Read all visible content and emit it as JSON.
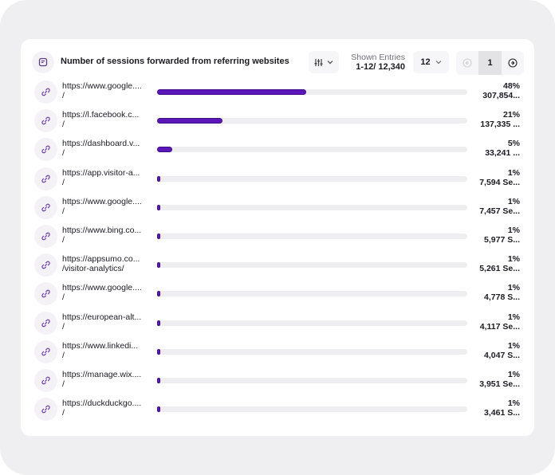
{
  "header": {
    "title": "Number of sessions forwarded from referring websites",
    "title_icon": "report-icon",
    "filter_icon": "sliders-icon",
    "entries_label": "Shown Entries",
    "entries_value": "1-12/ 12,340",
    "page_size": "12",
    "current_page": "1",
    "prev_icon": "arrow-left-circle-icon",
    "next_icon": "arrow-right-circle-icon"
  },
  "colors": {
    "bar_fill": "#5b17b8",
    "bar_track": "#eeeef0",
    "icon_bg": "#f4f2f7",
    "frame_bg": "#efeff1"
  },
  "rows": [
    {
      "url": "https://www.google....",
      "path": "/",
      "percent": "48%",
      "sessions": "307,854...",
      "fill": 48
    },
    {
      "url": "https://l.facebook.c...",
      "path": "/",
      "percent": "21%",
      "sessions": "137,335 ...",
      "fill": 21
    },
    {
      "url": "https://dashboard.v...",
      "path": "/",
      "percent": "5%",
      "sessions": "33,241 ...",
      "fill": 5
    },
    {
      "url": "https://app.visitor-a...",
      "path": "/",
      "percent": "1%",
      "sessions": "7,594 Se...",
      "fill": 1
    },
    {
      "url": "https://www.google....",
      "path": "/",
      "percent": "1%",
      "sessions": "7,457 Se...",
      "fill": 1
    },
    {
      "url": "https://www.bing.co...",
      "path": "/",
      "percent": "1%",
      "sessions": "5,977 S...",
      "fill": 1
    },
    {
      "url": "https://appsumo.co...",
      "path": "/visitor-analytics/",
      "percent": "1%",
      "sessions": "5,261 Se...",
      "fill": 1
    },
    {
      "url": "https://www.google....",
      "path": "/",
      "percent": "1%",
      "sessions": "4,778 S...",
      "fill": 1
    },
    {
      "url": "https://european-alt...",
      "path": "/",
      "percent": "1%",
      "sessions": "4,117 Se...",
      "fill": 1
    },
    {
      "url": "https://www.linkedi...",
      "path": "/",
      "percent": "1%",
      "sessions": "4,047 S...",
      "fill": 1
    },
    {
      "url": "https://manage.wix....",
      "path": "/",
      "percent": "1%",
      "sessions": "3,951 Se...",
      "fill": 1
    },
    {
      "url": "https://duckduckgo....",
      "path": "/",
      "percent": "1%",
      "sessions": "3,461 S...",
      "fill": 1
    }
  ]
}
